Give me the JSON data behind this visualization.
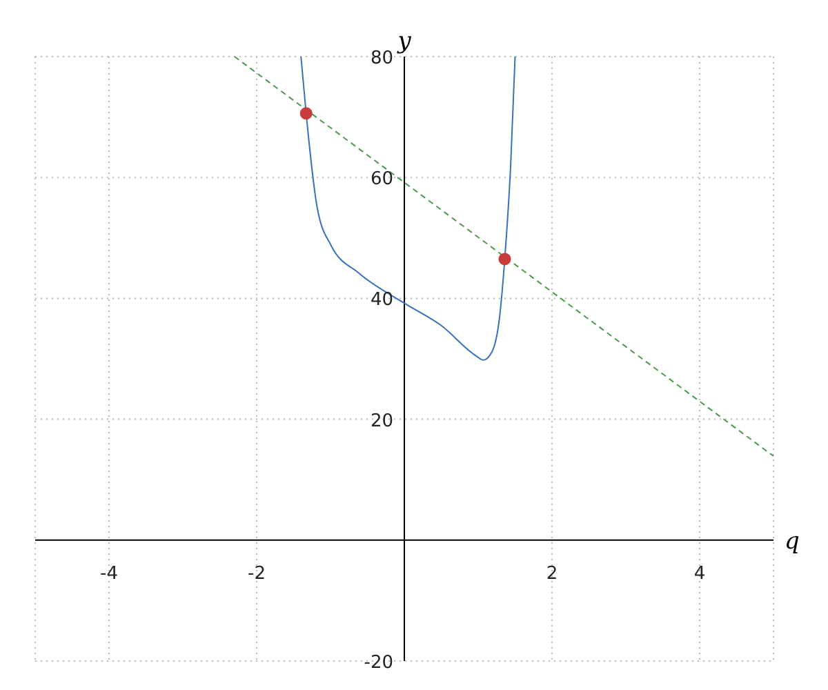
{
  "chart_data": {
    "type": "line",
    "xlabel": "q",
    "ylabel": "y",
    "xlim": [
      -5,
      5
    ],
    "ylim": [
      -20,
      80
    ],
    "xticks": [
      -4,
      -2,
      2,
      4
    ],
    "yticks": [
      -20,
      20,
      40,
      60,
      80
    ],
    "grid": true,
    "series": [
      {
        "marker": "none",
        "line_style": "solid",
        "color": "#3a6fbf",
        "x": [
          -1.4,
          -1.33,
          -1.18,
          -0.99,
          -0.62,
          0,
          0.5,
          0.97,
          1.07,
          1.18,
          1.29,
          1.36,
          1.44,
          1.5
        ],
        "values": [
          80,
          70.6,
          55,
          48.7,
          44.2,
          39.2,
          35.5,
          30.5,
          29.8,
          31,
          36.9,
          46.5,
          62,
          80
        ]
      },
      {
        "type": "line",
        "marker": "none",
        "line_style": "dashed",
        "color": "#4a9a4a",
        "x": [
          -2.3,
          5
        ],
        "values": [
          80,
          13.9
        ]
      },
      {
        "type": "scatter",
        "marker": "circle",
        "color": "#c83c3c",
        "x": [
          -1.33,
          1.36
        ],
        "values": [
          70.6,
          46.5
        ]
      }
    ]
  }
}
